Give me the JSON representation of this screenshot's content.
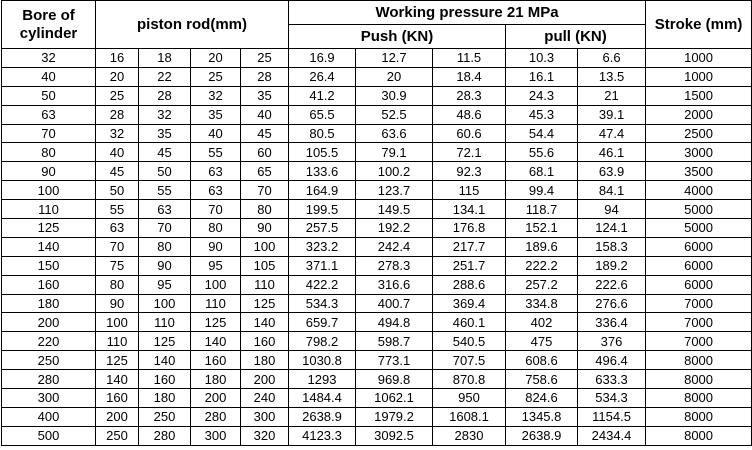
{
  "table": {
    "header": {
      "bore": "Bore of cylinder",
      "rod": "piston rod(mm)",
      "pressure": "Working pressure 21 MPa",
      "push": "Push (KN)",
      "pull": "pull (KN)",
      "stroke": "Stroke (mm)"
    },
    "rows": [
      [
        "32",
        "16",
        "18",
        "20",
        "25",
        "16.9",
        "12.7",
        "11.5",
        "10.3",
        "6.6",
        "1000"
      ],
      [
        "40",
        "20",
        "22",
        "25",
        "28",
        "26.4",
        "20",
        "18.4",
        "16.1",
        "13.5",
        "1000"
      ],
      [
        "50",
        "25",
        "28",
        "32",
        "35",
        "41.2",
        "30.9",
        "28.3",
        "24.3",
        "21",
        "1500"
      ],
      [
        "63",
        "28",
        "32",
        "35",
        "40",
        "65.5",
        "52.5",
        "48.6",
        "45.3",
        "39.1",
        "2000"
      ],
      [
        "70",
        "32",
        "35",
        "40",
        "45",
        "80.5",
        "63.6",
        "60.6",
        "54.4",
        "47.4",
        "2500"
      ],
      [
        "80",
        "40",
        "45",
        "55",
        "60",
        "105.5",
        "79.1",
        "72.1",
        "55.6",
        "46.1",
        "3000"
      ],
      [
        "90",
        "45",
        "50",
        "63",
        "65",
        "133.6",
        "100.2",
        "92.3",
        "68.1",
        "63.9",
        "3500"
      ],
      [
        "100",
        "50",
        "55",
        "63",
        "70",
        "164.9",
        "123.7",
        "115",
        "99.4",
        "84.1",
        "4000"
      ],
      [
        "110",
        "55",
        "63",
        "70",
        "80",
        "199.5",
        "149.5",
        "134.1",
        "118.7",
        "94",
        "5000"
      ],
      [
        "125",
        "63",
        "70",
        "80",
        "90",
        "257.5",
        "192.2",
        "176.8",
        "152.1",
        "124.1",
        "5000"
      ],
      [
        "140",
        "70",
        "80",
        "90",
        "100",
        "323.2",
        "242.4",
        "217.7",
        "189.6",
        "158.3",
        "6000"
      ],
      [
        "150",
        "75",
        "90",
        "95",
        "105",
        "371.1",
        "278.3",
        "251.7",
        "222.2",
        "189.2",
        "6000"
      ],
      [
        "160",
        "80",
        "95",
        "100",
        "110",
        "422.2",
        "316.6",
        "288.6",
        "257.2",
        "222.6",
        "6000"
      ],
      [
        "180",
        "90",
        "100",
        "110",
        "125",
        "534.3",
        "400.7",
        "369.4",
        "334.8",
        "276.6",
        "7000"
      ],
      [
        "200",
        "100",
        "110",
        "125",
        "140",
        "659.7",
        "494.8",
        "460.1",
        "402",
        "336.4",
        "7000"
      ],
      [
        "220",
        "110",
        "125",
        "140",
        "160",
        "798.2",
        "598.7",
        "540.5",
        "475",
        "376",
        "7000"
      ],
      [
        "250",
        "125",
        "140",
        "160",
        "180",
        "1030.8",
        "773.1",
        "707.5",
        "608.6",
        "496.4",
        "8000"
      ],
      [
        "280",
        "140",
        "160",
        "180",
        "200",
        "1293",
        "969.8",
        "870.8",
        "758.6",
        "633.3",
        "8000"
      ],
      [
        "300",
        "160",
        "180",
        "200",
        "240",
        "1484.4",
        "1062.1",
        "950",
        "824.6",
        "534.3",
        "8000"
      ],
      [
        "400",
        "200",
        "250",
        "280",
        "300",
        "2638.9",
        "1979.2",
        "1608.1",
        "1345.8",
        "1154.5",
        "8000"
      ],
      [
        "500",
        "250",
        "280",
        "300",
        "320",
        "4123.3",
        "3092.5",
        "2830",
        "2638.9",
        "2434.4",
        "8000"
      ]
    ]
  }
}
